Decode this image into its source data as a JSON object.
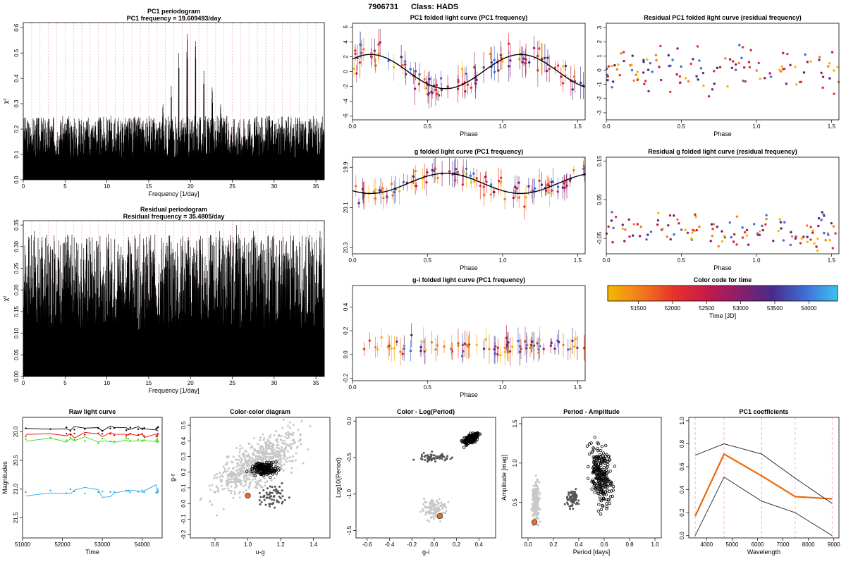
{
  "header": {
    "id": "7906731",
    "class_label": "Class: HADS"
  },
  "chart_data": [
    {
      "id": "pc1per",
      "type": "line",
      "title": "PC1 periodogram",
      "subtitle": "PC1 frequency = 19.609493/day",
      "xlabel": "Frequency [1/day]",
      "ylabel": "χ²",
      "xlim": [
        0,
        36
      ],
      "ylim": [
        0,
        0.62
      ],
      "xticks": [
        0,
        5,
        10,
        15,
        20,
        25,
        30,
        35
      ],
      "yticks": [
        0,
        0.1,
        0.2,
        0.3,
        0.4,
        0.5,
        0.6
      ],
      "ytick_labels": [
        "0.0",
        "0.1",
        "0.2",
        "0.3",
        "0.4",
        "0.5",
        "0.6"
      ],
      "base_level": 0.24,
      "peaks": [
        {
          "x": 19.6,
          "y": 0.6
        },
        {
          "x": 20.6,
          "y": 0.57
        },
        {
          "x": 18.6,
          "y": 0.5
        },
        {
          "x": 21.6,
          "y": 0.43
        },
        {
          "x": 17.7,
          "y": 0.37
        },
        {
          "x": 22.6,
          "y": 0.38
        },
        {
          "x": 16.7,
          "y": 0.31
        },
        {
          "x": 23.6,
          "y": 0.31
        }
      ]
    },
    {
      "id": "resper",
      "type": "line",
      "title": "Residual periodogram",
      "subtitle": "Residual frequency = 35.4805/day",
      "xlabel": "Frequency [1/day]",
      "ylabel": "χ²",
      "xlim": [
        0,
        36
      ],
      "ylim": [
        0,
        0.36
      ],
      "xticks": [
        0,
        5,
        10,
        15,
        20,
        25,
        30,
        35
      ],
      "yticks": [
        0,
        0.05,
        0.1,
        0.15,
        0.2,
        0.25,
        0.3,
        0.35
      ],
      "ytick_labels": [
        "0.00",
        "0.05",
        "0.10",
        "0.15",
        "0.20",
        "0.25",
        "0.30",
        "0.35"
      ],
      "base_level": 0.3,
      "peaks": [
        {
          "x": 35.48,
          "y": 0.35
        },
        {
          "x": 23.5,
          "y": 0.35
        },
        {
          "x": 25.5,
          "y": 0.35
        },
        {
          "x": 27.5,
          "y": 0.35
        },
        {
          "x": 1.3,
          "y": 0.35
        },
        {
          "x": 3.7,
          "y": 0.34
        },
        {
          "x": 29.3,
          "y": 0.34
        }
      ]
    },
    {
      "id": "pc1fold",
      "type": "scatter",
      "title": "PC1 folded light curve (PC1 frequency)",
      "xlabel": "Phase",
      "ylabel": "",
      "xlim": [
        0,
        1.55
      ],
      "ylim": [
        -6.5,
        6.5
      ],
      "xticks": [
        0,
        0.5,
        1,
        1.5
      ],
      "xtick_labels": [
        "0.0",
        "0.5",
        "1.0",
        "1.5"
      ],
      "yticks": [
        -6,
        -4,
        -2,
        0,
        2,
        4,
        6
      ],
      "ytick_labels": [
        "-6",
        "-4",
        "-2",
        "0",
        "2",
        "4",
        "6"
      ],
      "model": {
        "offset": 0,
        "amp": 2.3,
        "peak_phase": 0.12
      },
      "points": {
        "n": 110,
        "spread": 1.3,
        "err": 1.6,
        "seed": 11
      }
    },
    {
      "id": "gfold",
      "type": "scatter",
      "title": "g folded light curve (PC1 frequency)",
      "xlabel": "Phase",
      "ylabel": "",
      "xlim": [
        0,
        1.55
      ],
      "ylim": [
        20.33,
        19.85
      ],
      "xticks": [
        0,
        0.5,
        1,
        1.5
      ],
      "xtick_labels": [
        "0.0",
        "0.5",
        "1.0",
        "1.5"
      ],
      "yticks": [
        19.9,
        20.1,
        20.3
      ],
      "ytick_labels": [
        "19.9",
        "20.1",
        "20.3"
      ],
      "model": {
        "offset": 19.98,
        "amp": -0.05,
        "peak_phase": 0.62
      },
      "points": {
        "n": 110,
        "spread": 0.035,
        "err": 0.05,
        "seed": 22
      }
    },
    {
      "id": "gifold",
      "type": "scatter",
      "title": "g-i folded light curve (PC1 frequency)",
      "xlabel": "Phase",
      "ylabel": "",
      "xlim": [
        0,
        1.55
      ],
      "ylim": [
        -0.22,
        0.58
      ],
      "xticks": [
        0,
        0.5,
        1,
        1.5
      ],
      "xtick_labels": [
        "0.0",
        "0.5",
        "1.0",
        "1.5"
      ],
      "yticks": [
        -0.2,
        0,
        0.2,
        0.4
      ],
      "ytick_labels": [
        "-0.2",
        "0.0",
        "0.2",
        "0.4"
      ],
      "model": null,
      "points": {
        "n": 90,
        "center": 0.07,
        "spread": 0.05,
        "err": 0.09,
        "seed": 33
      }
    },
    {
      "id": "respc1",
      "type": "scatter",
      "title": "Residual PC1 folded light curve (residual frequency)",
      "xlabel": "Phase",
      "ylabel": "",
      "xlim": [
        0,
        1.55
      ],
      "ylim": [
        -3.5,
        3.3
      ],
      "xticks": [
        0,
        0.5,
        1,
        1.5
      ],
      "xtick_labels": [
        "0.0",
        "0.5",
        "1.0",
        "1.5"
      ],
      "yticks": [
        -3,
        -2,
        -1,
        0,
        1,
        2,
        3
      ],
      "ytick_labels": [
        "-3",
        "-2",
        "-1",
        "0",
        "1",
        "2",
        "3"
      ],
      "points": {
        "n": 120,
        "center": 0,
        "spread": 1.1,
        "seed": 44
      }
    },
    {
      "id": "resg",
      "type": "scatter",
      "title": "Residual g folded light curve (residual frequency)",
      "xlabel": "Phase",
      "ylabel": "",
      "xlim": [
        0,
        1.55
      ],
      "ylim": [
        -0.09,
        0.16
      ],
      "xticks": [
        0,
        0.5,
        1,
        1.5
      ],
      "xtick_labels": [
        "0.0",
        "0.5",
        "1.0",
        "1.5"
      ],
      "yticks": [
        -0.05,
        0.05,
        0.15
      ],
      "ytick_labels": [
        "-0.05",
        "0.05",
        "0.15"
      ],
      "points": {
        "n": 120,
        "center": -0.03,
        "spread": 0.03,
        "seed": 55
      }
    },
    {
      "id": "colorbar",
      "type": "heatmap",
      "title": "Color code for time",
      "xlabel": "Time [JD]",
      "xlim": [
        51050,
        54420
      ],
      "xticks": [
        51500,
        52000,
        52500,
        53000,
        53500,
        54000
      ],
      "colors": [
        "#f5b800",
        "#f07d1d",
        "#e8322c",
        "#c71a4a",
        "#8a1f6b",
        "#4a2a8a",
        "#3f6dd4",
        "#3ec1f3"
      ]
    },
    {
      "id": "rawlc",
      "type": "line",
      "title": "Raw light curve",
      "xlabel": "Time",
      "ylabel": "Magnitudes",
      "xlim": [
        51000,
        54500
      ],
      "ylim": [
        21.85,
        19.75
      ],
      "xticks": [
        51000,
        52000,
        53000,
        54000
      ],
      "yticks": [
        20,
        20.5,
        21,
        21.5
      ],
      "ytick_labels": [
        "20.0",
        "20.5",
        "21.0",
        "21.5"
      ],
      "series": [
        {
          "band": "black",
          "color": "#000000",
          "level": 19.95
        },
        {
          "band": "red",
          "color": "#e00000",
          "level": 20.05
        },
        {
          "band": "green",
          "color": "#33dd00",
          "level": 20.15
        },
        {
          "band": "blue",
          "color": "#2aa7e8",
          "level": 21.05
        }
      ]
    },
    {
      "id": "ccd",
      "type": "scatter",
      "title": "Color-color diagram",
      "xlabel": "u-g",
      "ylabel": "g-r",
      "xlim": [
        0.65,
        1.5
      ],
      "ylim": [
        -0.22,
        0.55
      ],
      "xticks": [
        0.8,
        1.0,
        1.2,
        1.4
      ],
      "xtick_labels": [
        "0.8",
        "1.0",
        "1.2",
        "1.4"
      ],
      "yticks": [
        -0.2,
        -0.1,
        0,
        0.1,
        0.2,
        0.3,
        0.4,
        0.5
      ],
      "ytick_labels": [
        "-0.2",
        "-0.1",
        "0.0",
        "0.1",
        "0.2",
        "0.3",
        "0.4",
        "0.5"
      ],
      "target": {
        "x": 1.0,
        "y": 0.05
      }
    },
    {
      "id": "clp",
      "type": "scatter",
      "title": "Color - Log(Period)",
      "xlabel": "g-i",
      "ylabel": "Log10(Period)",
      "xlim": [
        -0.7,
        0.55
      ],
      "ylim": [
        -1.6,
        0.05
      ],
      "xticks": [
        -0.6,
        -0.4,
        -0.2,
        0,
        0.2,
        0.4
      ],
      "xtick_labels": [
        "-0.6",
        "-0.4",
        "-0.2",
        "0.0",
        "0.2",
        "0.4"
      ],
      "yticks": [
        -1.5,
        -1.0,
        -0.5,
        0.0
      ],
      "ytick_labels": [
        "-1.5",
        "-1.0",
        "-0.5",
        "0.0"
      ],
      "target": {
        "x": 0.05,
        "y": -1.3
      }
    },
    {
      "id": "pa",
      "type": "scatter",
      "title": "Period - Amplitude",
      "xlabel": "Period [days]",
      "ylabel": "Amplitude [mag]",
      "xlim": [
        -0.05,
        1.05
      ],
      "ylim": [
        0.05,
        1.58
      ],
      "xticks": [
        0,
        0.2,
        0.4,
        0.6,
        0.8,
        1.0
      ],
      "xtick_labels": [
        "0.0",
        "0.2",
        "0.4",
        "0.6",
        "0.8",
        "1.0"
      ],
      "yticks": [
        0.5,
        1.0,
        1.5
      ],
      "ytick_labels": [
        "0.5",
        "1.0",
        "1.5"
      ],
      "target": {
        "x": 0.05,
        "y": 0.25
      }
    },
    {
      "id": "pc1coef",
      "type": "line",
      "title": "PC1 coefficients",
      "xlabel": "Wavelength",
      "ylabel": "",
      "xlim": [
        3300,
        9200
      ],
      "ylim": [
        -0.02,
        1.03
      ],
      "xticks": [
        4000,
        5000,
        6000,
        7000,
        8000,
        9000
      ],
      "yticks": [
        0,
        0.2,
        0.4,
        0.6,
        0.8,
        1.0
      ],
      "ytick_labels": [
        "0.0",
        "0.2",
        "0.4",
        "0.6",
        "0.8",
        "1.0"
      ],
      "bands": [
        3551,
        4686,
        6166,
        7480,
        8932
      ],
      "series": [
        {
          "name": "",
          "color": "#e8690f",
          "width": 2.2,
          "values": [
            0.17,
            0.71,
            0.52,
            0.34,
            0.32
          ]
        },
        {
          "name": "",
          "color": "#333333",
          "width": 1,
          "values": [
            0.7,
            0.8,
            0.71,
            0.5,
            0.28
          ]
        },
        {
          "name": "",
          "color": "#333333",
          "width": 1,
          "values": [
            0.0,
            0.51,
            0.3,
            0.2,
            0.0
          ]
        }
      ]
    }
  ]
}
